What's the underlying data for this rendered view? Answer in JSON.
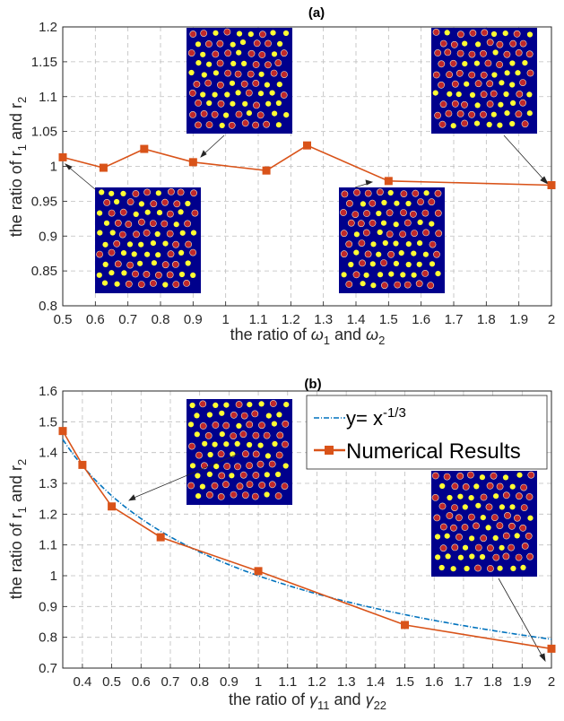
{
  "colors": {
    "series": "#d95319",
    "fit": "#0072bd",
    "inset_bg": "#00008c",
    "inset_yellow": "#ffff33",
    "inset_red": "#c0282b",
    "grid": "#bdbdbd"
  },
  "chart_data": [
    {
      "type": "line",
      "title": "(a)",
      "xlabel_prefix": "the ratio of ",
      "xlabel_sym1": "ω",
      "xlabel_sub1": "1",
      "xlabel_and": " and ",
      "xlabel_sym2": "ω",
      "xlabel_sub2": "2",
      "ylabel_prefix": "the ratio of r",
      "ylabel_sub1": "1",
      "ylabel_and": " and r",
      "ylabel_sub2": "2",
      "xlim": [
        0.5,
        2.0
      ],
      "ylim": [
        0.8,
        1.2
      ],
      "xticks": [
        "0.5",
        "0.6",
        "0.7",
        "0.8",
        "0.9",
        "1",
        "1.1",
        "1.2",
        "1.3",
        "1.4",
        "1.5",
        "1.6",
        "1.7",
        "1.8",
        "1.9",
        "2"
      ],
      "yticks": [
        "0.8",
        "0.85",
        "0.9",
        "0.95",
        "1",
        "1.05",
        "1.1",
        "1.15",
        "1.2"
      ],
      "grid": true,
      "marker": "square",
      "series": [
        {
          "x": [
            0.5,
            0.625,
            0.75,
            0.9,
            1.125,
            1.25,
            1.5,
            2.0
          ],
          "y": [
            1.013,
            0.998,
            1.025,
            1.006,
            0.994,
            1.03,
            0.979,
            0.973
          ]
        }
      ],
      "insets": [
        {
          "anchor_x": 0.5,
          "anchor_y": 1.013
        },
        {
          "anchor_x": 0.9,
          "anchor_y": 1.006
        },
        {
          "anchor_x": 1.5,
          "anchor_y": 0.979
        },
        {
          "anchor_x": 2.0,
          "anchor_y": 0.973
        }
      ]
    },
    {
      "type": "line",
      "title": "(b)",
      "xlabel_prefix": "the ratio of ",
      "xlabel_sym1": "γ",
      "xlabel_sub1": "11",
      "xlabel_and": " and ",
      "xlabel_sym2": "γ",
      "xlabel_sub2": "22",
      "ylabel_prefix": "the ratio of r",
      "ylabel_sub1": "1",
      "ylabel_and": " and r",
      "ylabel_sub2": "2",
      "xlim": [
        0.333,
        2.0
      ],
      "ylim": [
        0.7,
        1.6
      ],
      "xticks": [
        "0.4",
        "0.5",
        "0.6",
        "0.7",
        "0.8",
        "0.9",
        "1",
        "1.1",
        "1.2",
        "1.3",
        "1.4",
        "1.5",
        "1.6",
        "1.7",
        "1.8",
        "1.9",
        "2"
      ],
      "yticks": [
        "0.7",
        "0.8",
        "0.9",
        "1",
        "1.1",
        "1.2",
        "1.3",
        "1.4",
        "1.5",
        "1.6"
      ],
      "grid": true,
      "legend_placement": "top-right",
      "series": [
        {
          "name": "y= x",
          "name_sup": "-1/3",
          "style": "dash-dot",
          "function": "x^(-1/3)"
        },
        {
          "name": "Numerical Results",
          "marker": "square",
          "x": [
            0.333,
            0.4,
            0.5,
            0.667,
            1.0,
            1.5,
            2.0
          ],
          "y": [
            1.47,
            1.36,
            1.225,
            1.125,
            1.015,
            0.84,
            0.763
          ]
        }
      ],
      "insets": [
        {
          "anchor_x": 0.5,
          "anchor_y": 1.225
        },
        {
          "anchor_x": 2.0,
          "anchor_y": 0.794
        }
      ]
    }
  ]
}
